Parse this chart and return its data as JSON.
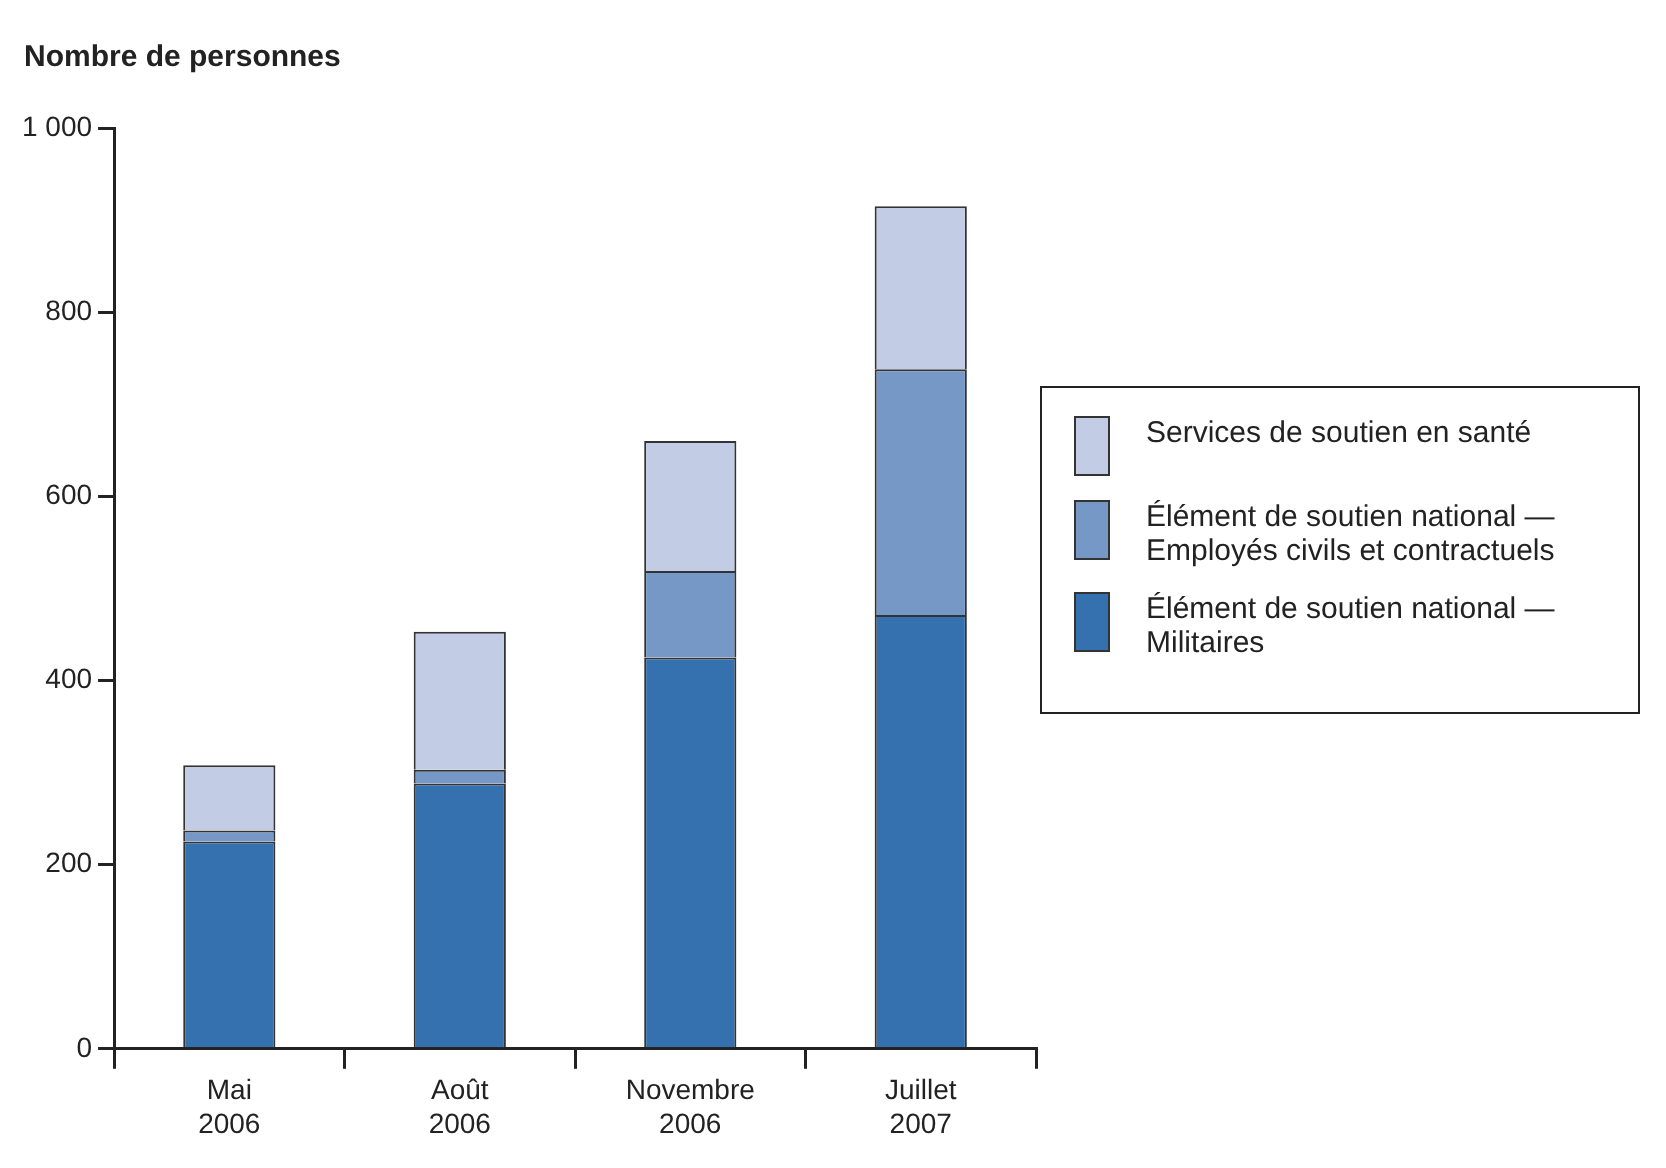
{
  "chart_data": {
    "type": "bar",
    "stacked": true,
    "ylabel": "Nombre de personnes",
    "categories": [
      "Mai 2006",
      "Août 2006",
      "Novembre 2006",
      "Juillet 2007"
    ],
    "series": [
      {
        "name": "Élément de soutien national — Militaires",
        "color": "#3571ae",
        "values": [
          225,
          288,
          425,
          471
        ]
      },
      {
        "name": "Élément de soutien national — Employés civils et contractuels",
        "color": "#7598c6",
        "values": [
          12,
          15,
          94,
          267
        ]
      },
      {
        "name": "Services de soutien en santé",
        "color": "#c2cde5",
        "values": [
          71,
          150,
          141,
          177
        ]
      }
    ],
    "ylim": [
      0,
      1000
    ],
    "yticks": [
      0,
      200,
      400,
      600,
      800,
      {
        "value": 1000,
        "label": "1 000"
      }
    ],
    "grid": false,
    "legend": "right"
  }
}
